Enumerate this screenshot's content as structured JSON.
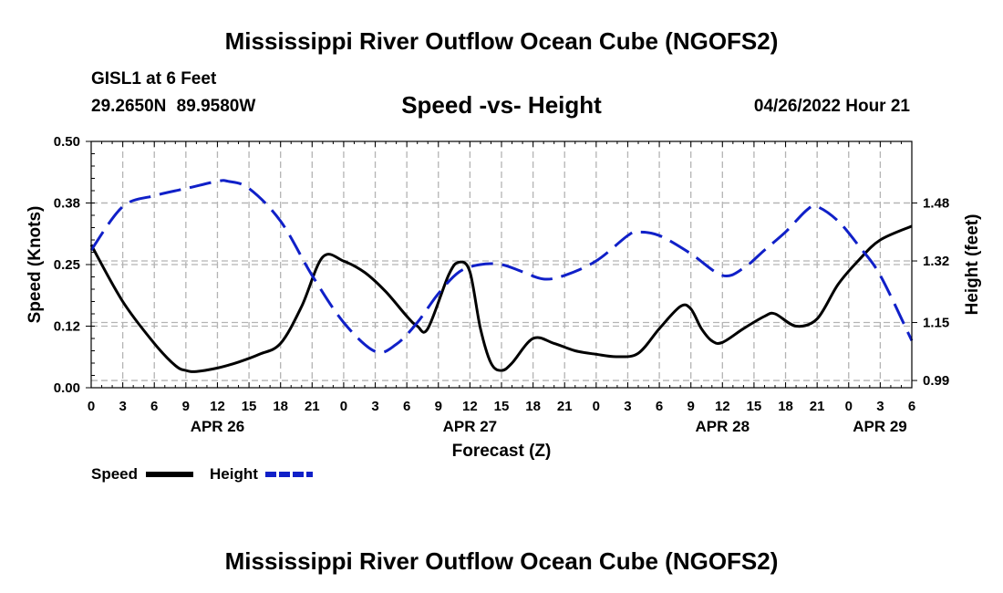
{
  "header": {
    "title": "Mississippi River Outflow Ocean Cube (NGOFS2)",
    "station": "GISL1 at 6 Feet",
    "coords": "29.2650N  89.9580W",
    "subtitle": "Speed -vs- Height",
    "datetime": "04/26/2022 Hour 21"
  },
  "footer": {
    "title": "Mississippi River Outflow Ocean Cube (NGOFS2)"
  },
  "colors": {
    "speed": "#000000",
    "height": "#1020c8",
    "grid": "#b4b4b4"
  },
  "chart_data": {
    "type": "line",
    "title": "Speed -vs- Height",
    "xlabel": "Forecast (Z)",
    "ylabel": "Speed (Knots)",
    "y2label": "Height (feet)",
    "xlim": [
      0,
      78
    ],
    "ylim": [
      0,
      0.5
    ],
    "y2lim": [
      0.97,
      1.65
    ],
    "x_ticks": [
      0,
      3,
      6,
      9,
      12,
      15,
      18,
      21,
      24,
      27,
      30,
      33,
      36,
      39,
      42,
      45,
      48,
      51,
      54,
      57,
      60,
      63,
      66,
      69,
      72,
      75,
      78
    ],
    "x_tick_labels": [
      "0",
      "3",
      "6",
      "9",
      "12",
      "15",
      "18",
      "21",
      "0",
      "3",
      "6",
      "9",
      "12",
      "15",
      "18",
      "21",
      "0",
      "3",
      "6",
      "9",
      "12",
      "15",
      "18",
      "21",
      "0",
      "3",
      "6"
    ],
    "date_labels": [
      {
        "x": 12,
        "label": "APR 26"
      },
      {
        "x": 36,
        "label": "APR 27"
      },
      {
        "x": 60,
        "label": "APR 28"
      },
      {
        "x": 78,
        "label": "APR 29"
      }
    ],
    "y_ticks": [
      0,
      0.125,
      0.25,
      0.375,
      0.5
    ],
    "y_tick_labels": [
      "0.00",
      "0.12",
      "0.25",
      "0.38",
      "0.50"
    ],
    "y2_ticks": [
      0.99,
      1.15,
      1.32,
      1.48
    ],
    "y2_tick_labels": [
      "0.99",
      "1.15",
      "1.32",
      "1.48"
    ],
    "legend": {
      "placement": "bottom-left",
      "speed_label": "Speed",
      "height_label": "Height"
    },
    "series": [
      {
        "name": "Speed",
        "axis": "left",
        "style": "solid",
        "x": [
          0,
          3,
          6,
          8,
          9,
          10,
          12,
          14,
          16,
          18,
          20,
          22,
          24,
          26,
          28,
          30,
          31,
          32,
          34,
          35,
          36,
          37,
          38,
          39,
          40,
          42,
          44,
          46,
          48,
          50,
          52,
          54,
          56,
          57,
          58,
          59,
          60,
          62,
          64,
          65,
          67,
          69,
          71,
          73,
          75,
          78
        ],
        "values": [
          0.29,
          0.175,
          0.09,
          0.045,
          0.035,
          0.033,
          0.04,
          0.052,
          0.068,
          0.09,
          0.165,
          0.265,
          0.257,
          0.234,
          0.195,
          0.145,
          0.125,
          0.12,
          0.23,
          0.255,
          0.235,
          0.12,
          0.05,
          0.035,
          0.05,
          0.1,
          0.09,
          0.075,
          0.068,
          0.063,
          0.07,
          0.12,
          0.165,
          0.16,
          0.12,
          0.095,
          0.092,
          0.12,
          0.145,
          0.15,
          0.125,
          0.14,
          0.21,
          0.26,
          0.3,
          0.328
        ]
      },
      {
        "name": "Height",
        "axis": "right",
        "style": "dashed",
        "x": [
          0,
          3,
          6,
          9,
          12,
          13,
          15,
          18,
          21,
          24,
          27,
          29,
          31,
          33,
          35,
          37,
          39,
          41,
          43,
          45,
          48,
          51,
          52,
          54,
          57,
          60,
          62,
          64,
          66,
          68,
          69,
          71,
          73,
          75,
          78
        ],
        "values": [
          1.35,
          1.47,
          1.5,
          1.52,
          1.54,
          1.54,
          1.52,
          1.43,
          1.28,
          1.15,
          1.07,
          1.09,
          1.15,
          1.23,
          1.29,
          1.31,
          1.31,
          1.29,
          1.27,
          1.28,
          1.32,
          1.39,
          1.4,
          1.39,
          1.34,
          1.28,
          1.3,
          1.35,
          1.4,
          1.46,
          1.47,
          1.43,
          1.36,
          1.28,
          1.1
        ]
      }
    ]
  }
}
